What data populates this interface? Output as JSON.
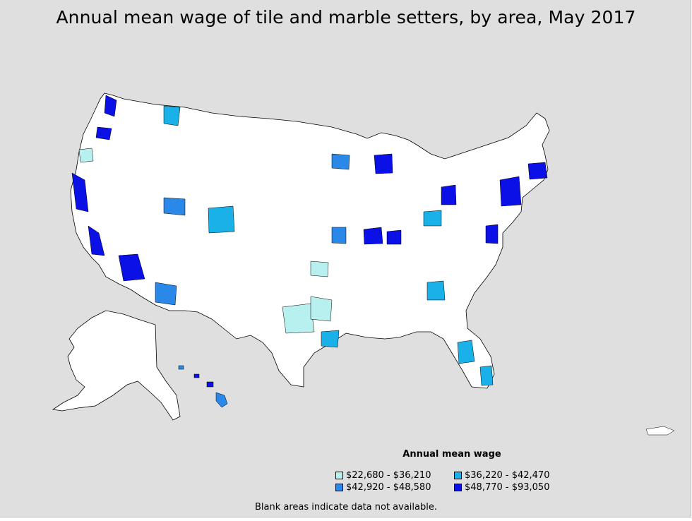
{
  "title": "Annual mean wage of tile and marble setters, by area, May 2017",
  "legend": {
    "title": "Annual mean wage",
    "items": [
      {
        "label": "$22,680 - $36,210",
        "color": "#b8f0f0"
      },
      {
        "label": "$36,220 - $42,470",
        "color": "#1ab0e8"
      },
      {
        "label": "$42,920 - $48,580",
        "color": "#2a88e8"
      },
      {
        "label": "$48,770 - $93,050",
        "color": "#0a10e6"
      }
    ]
  },
  "note": "Blank areas indicate data not available.",
  "colors": {
    "background": "#dfdfdf",
    "no_data": "#ffffff",
    "border": "#000000"
  }
}
